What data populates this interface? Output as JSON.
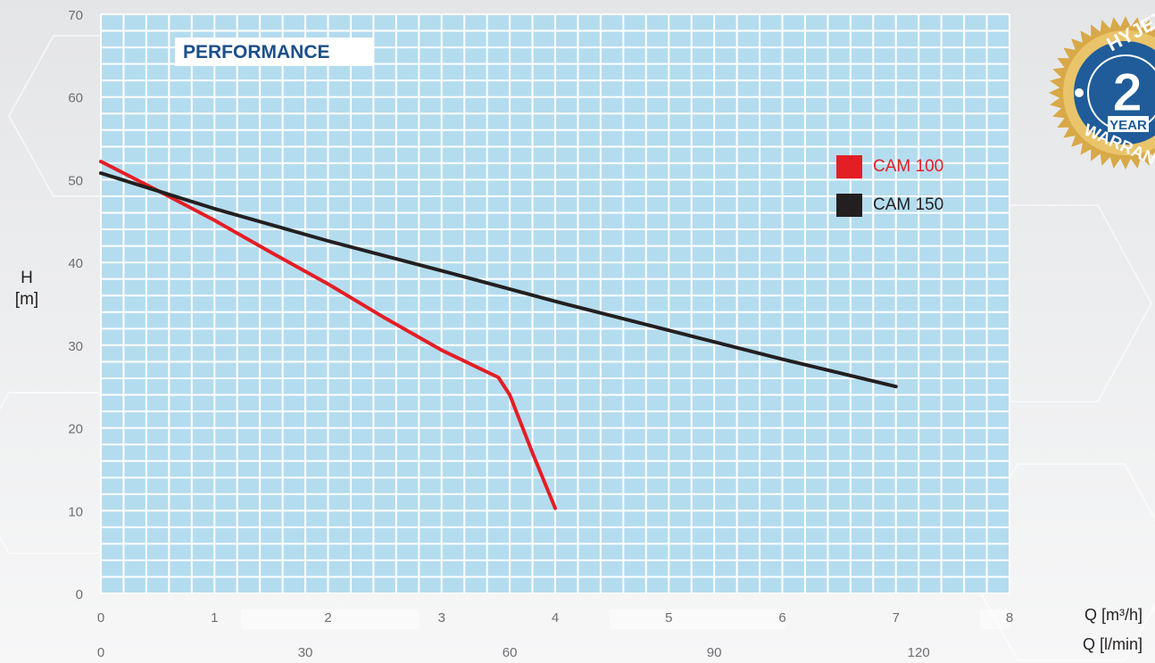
{
  "chart_data": {
    "type": "line",
    "title": "PERFORMANCE",
    "ylabel": [
      "H",
      "[m]"
    ],
    "xlabel_primary": "Q [m³/h]",
    "xlabel_secondary": "Q [l/min]",
    "ylim": [
      0,
      70
    ],
    "yticks": [
      0,
      10,
      20,
      30,
      40,
      50,
      60,
      70
    ],
    "xlim": [
      0,
      8
    ],
    "xticks": [
      0,
      1,
      2,
      3,
      4,
      5,
      6,
      7,
      8
    ],
    "xticks_secondary": [
      0,
      30,
      60,
      90,
      120
    ],
    "grid": true,
    "legend_position": "right",
    "series": [
      {
        "name": "CAM 100",
        "color": "#e31e24",
        "points": [
          [
            0,
            52.2
          ],
          [
            0.5,
            48.7
          ],
          [
            1,
            45.1
          ],
          [
            1.5,
            41.2
          ],
          [
            2,
            37.4
          ],
          [
            2.5,
            33.3
          ],
          [
            3,
            29.4
          ],
          [
            3.5,
            26.1
          ],
          [
            3.6,
            24
          ],
          [
            3.8,
            17
          ],
          [
            4,
            10.3
          ]
        ]
      },
      {
        "name": "CAM 150",
        "color": "#231f20",
        "points": [
          [
            0,
            50.8
          ],
          [
            1,
            46.5
          ],
          [
            2,
            42.6
          ],
          [
            3,
            39.0
          ],
          [
            4,
            35.3
          ],
          [
            5,
            31.8
          ],
          [
            6,
            28.3
          ],
          [
            7,
            25.0
          ]
        ]
      }
    ]
  },
  "badge": {
    "brand": "HYJET",
    "number": "2",
    "unit": "YEAR",
    "text": "WARRANTY"
  },
  "colors": {
    "plot_bg": "#b4dcef",
    "grid": "#ffffff",
    "title_text": "#1c4f8b",
    "badge_gold": "#d8a948",
    "badge_blue": "#1f5c99"
  }
}
